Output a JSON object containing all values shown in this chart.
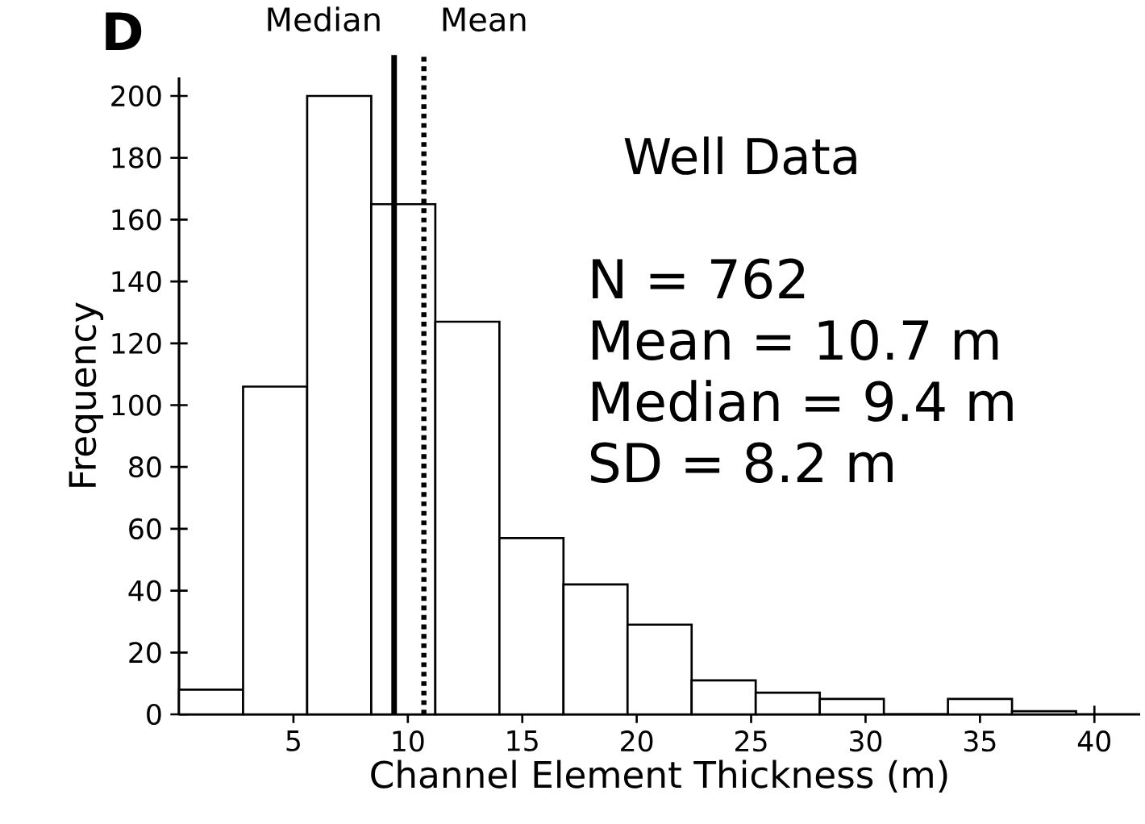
{
  "chart_data": {
    "type": "histogram",
    "title": "D",
    "xlabel": "Channel Element Thickness (m)",
    "ylabel": "Frequency",
    "bins": [
      0,
      2.8,
      5.6,
      8.4,
      11.2,
      14,
      16.8,
      19.6,
      22.4,
      25.2,
      28,
      30.8,
      33.6,
      36.4,
      39.2
    ],
    "values": [
      8,
      106,
      200,
      165,
      127,
      57,
      42,
      29,
      11,
      7,
      5,
      0,
      5,
      1
    ],
    "color": "#ffffff",
    "xlim": [
      0,
      42
    ],
    "xticks": [
      5,
      10,
      15,
      20,
      25,
      30,
      35,
      40
    ],
    "ylim": [
      0,
      206
    ],
    "yticks": [
      0,
      20,
      40,
      60,
      80,
      100,
      120,
      140,
      160,
      180,
      200
    ],
    "ref_lines": [
      {
        "axis": "x",
        "value": 9.4,
        "label": "Median",
        "color": "#000000",
        "line_style": "solid"
      },
      {
        "axis": "x",
        "value": 10.7,
        "label": "Mean",
        "color": "#000000",
        "line_style": "dotted"
      }
    ],
    "annotations": [
      "Well Data",
      "N = 762",
      "Mean = 10.7 m",
      "Median = 9.4 m",
      "SD = 8.2 m"
    ],
    "grid": false
  }
}
